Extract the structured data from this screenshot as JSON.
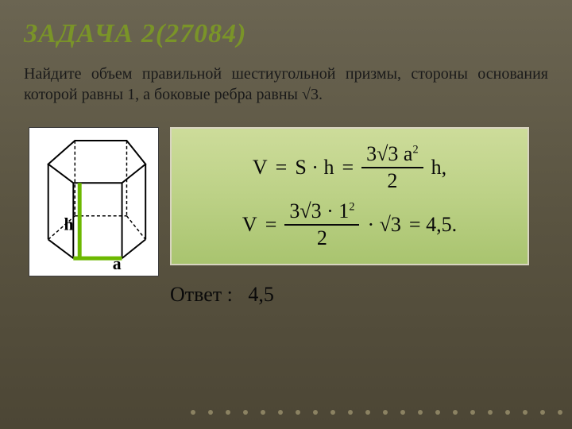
{
  "title": "ЗАДАЧА 2(27084)",
  "body": "Найдите объем правильной шестиугольной призмы, стороны основания которой равны 1, а боковые ребра равны √3.",
  "figure": {
    "label_h": "h",
    "label_a": "a",
    "highlight_color": "#6cb800",
    "stroke": "#000000"
  },
  "formula_box": {
    "bg_gradient": [
      "#cddc9a",
      "#bcd186",
      "#a9c46f"
    ],
    "line1": {
      "lhs": "V",
      "mid": "S · h",
      "frac_num": "3√3 a",
      "frac_num_exp": "2",
      "frac_den": "2",
      "tail": "h,"
    },
    "line2": {
      "lhs": "V",
      "frac_num": "3√3 · 1",
      "frac_num_exp": "2",
      "frac_den": "2",
      "mult": "· √3",
      "result": "= 4,5."
    }
  },
  "answer": {
    "label": "Ответ :",
    "value": "4,5"
  },
  "dot_count": 22
}
